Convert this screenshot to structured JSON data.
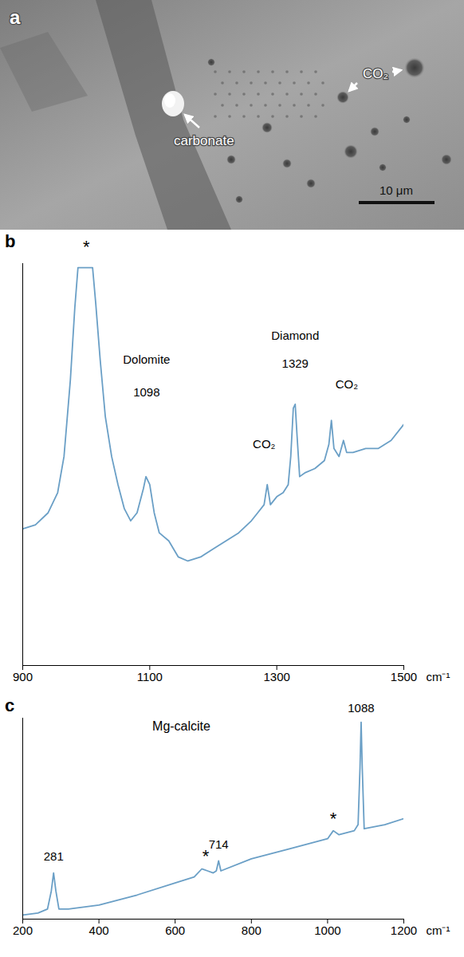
{
  "image_panel": {
    "panel_label": "a",
    "labels": [
      "carbonate",
      "CO₂"
    ],
    "scale_bar_label": "10 μm"
  },
  "chart_data": [
    {
      "type": "line",
      "panel_label": "b",
      "x_label": "cm⁻¹",
      "color": "#6a9fc6",
      "tick_labels": "x",
      "xlim": [
        900,
        1500
      ],
      "xticks": [
        900,
        1100,
        1300,
        1500
      ],
      "ylim": [
        0,
        100
      ],
      "x": [
        900,
        920,
        940,
        955,
        965,
        975,
        982,
        987,
        1010,
        1015,
        1022,
        1030,
        1040,
        1050,
        1060,
        1070,
        1080,
        1090,
        1094,
        1100,
        1107,
        1115,
        1130,
        1145,
        1160,
        1180,
        1200,
        1220,
        1240,
        1260,
        1270,
        1280,
        1285,
        1290,
        1300,
        1310,
        1318,
        1322,
        1326,
        1329,
        1332,
        1336,
        1345,
        1360,
        1375,
        1382,
        1386,
        1390,
        1398,
        1405,
        1410,
        1420,
        1440,
        1460,
        1480,
        1500
      ],
      "values": [
        34,
        35,
        38,
        43,
        52,
        71,
        89,
        99,
        99,
        90,
        76,
        62,
        52,
        45,
        39,
        36,
        38,
        44,
        47,
        45,
        38,
        33,
        31,
        27,
        26,
        27,
        29,
        31,
        33,
        36,
        38,
        40,
        45,
        40,
        42,
        43,
        45,
        52,
        64,
        65,
        57,
        47,
        48,
        49,
        51,
        55,
        61,
        54,
        52,
        56,
        53,
        53,
        54,
        54,
        56,
        60
      ],
      "annotations": [
        {
          "text": "*",
          "x": 1000,
          "y": 104
        },
        {
          "text": "Dolomite",
          "x": 1095,
          "y": 76
        },
        {
          "text": "1098",
          "x": 1095,
          "y": 68
        },
        {
          "text": "Diamond",
          "x": 1329,
          "y": 82
        },
        {
          "text": "1329",
          "x": 1329,
          "y": 75
        },
        {
          "text": "CO₂",
          "x": 1280,
          "y": 55
        },
        {
          "text": "CO₂",
          "x": 1410,
          "y": 70
        }
      ]
    },
    {
      "type": "line",
      "panel_label": "c",
      "title": "Mg-calcite",
      "x_label": "cm⁻¹",
      "color": "#6a9fc6",
      "tick_labels": "x",
      "xlim": [
        200,
        1200
      ],
      "xticks": [
        200,
        400,
        600,
        800,
        1000,
        1200
      ],
      "ylim": [
        0,
        100
      ],
      "x": [
        200,
        240,
        265,
        275,
        281,
        287,
        295,
        320,
        400,
        500,
        600,
        650,
        670,
        685,
        700,
        708,
        714,
        720,
        800,
        900,
        1000,
        1015,
        1030,
        1070,
        1080,
        1085,
        1088,
        1091,
        1096,
        1150,
        1200
      ],
      "values": [
        2,
        3,
        5,
        14,
        23,
        14,
        5,
        5,
        7,
        12,
        18,
        21,
        25,
        24,
        23,
        24,
        29,
        24,
        30,
        35,
        40,
        44,
        42,
        44,
        47,
        75,
        98,
        75,
        45,
        47,
        50
      ],
      "annotations": [
        {
          "text": "281",
          "x": 281,
          "y": 31
        },
        {
          "text": "*",
          "x": 680,
          "y": 31
        },
        {
          "text": "714",
          "x": 714,
          "y": 37
        },
        {
          "text": "*",
          "x": 1015,
          "y": 50
        },
        {
          "text": "1088",
          "x": 1088,
          "y": 105
        }
      ]
    }
  ]
}
